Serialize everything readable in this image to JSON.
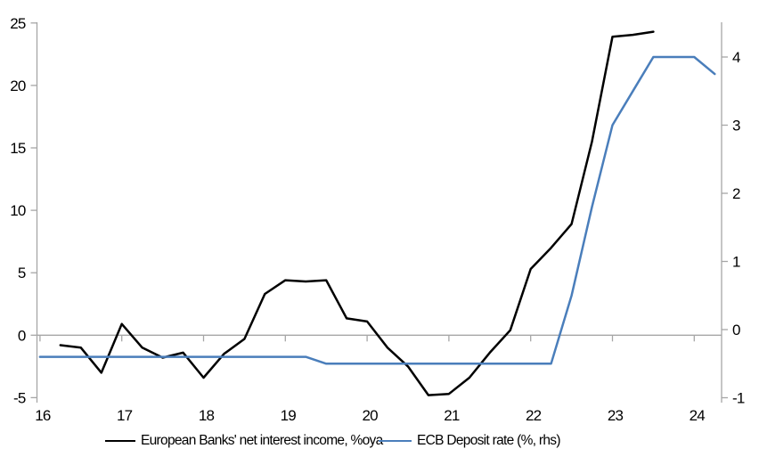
{
  "chart_data": {
    "type": "line",
    "title": "",
    "x_axis": {
      "min": 16,
      "max": 24.33,
      "ticks": [
        16,
        17,
        18,
        19,
        20,
        21,
        22,
        23,
        24
      ],
      "tick_labels": [
        "16",
        "17",
        "18",
        "19",
        "20",
        "21",
        "22",
        "23",
        "24"
      ],
      "label_position": "low"
    },
    "y_left": {
      "min": -5.5,
      "max": 25.1,
      "ticks": [
        25,
        20,
        15,
        10,
        5,
        0,
        -5
      ],
      "tick_labels": [
        "25",
        "20",
        "15",
        "10",
        "5",
        "0",
        "-5"
      ]
    },
    "y_right": {
      "min": -1.05,
      "max": 4.5,
      "ticks": [
        4,
        3,
        2,
        1,
        0,
        -1
      ],
      "tick_labels": [
        "4",
        "3",
        "2",
        "1",
        "0",
        "-1"
      ]
    },
    "grid": "zero-line-only",
    "legend_position": "bottom",
    "series": [
      {
        "name": "European Banks' net interest income, %oya",
        "axis": "left",
        "color": "#000000",
        "points": [
          [
            16.25,
            -0.8
          ],
          [
            16.5,
            -1.0
          ],
          [
            16.75,
            -3.0
          ],
          [
            17.0,
            0.9
          ],
          [
            17.25,
            -1.0
          ],
          [
            17.5,
            -1.8
          ],
          [
            17.75,
            -1.4
          ],
          [
            18.0,
            -3.4
          ],
          [
            18.25,
            -1.5
          ],
          [
            18.5,
            -0.3
          ],
          [
            18.75,
            3.3
          ],
          [
            19.0,
            4.4
          ],
          [
            19.25,
            4.3
          ],
          [
            19.5,
            4.4
          ],
          [
            19.75,
            1.35
          ],
          [
            20.0,
            1.1
          ],
          [
            20.25,
            -1.0
          ],
          [
            20.5,
            -2.5
          ],
          [
            20.75,
            -4.8
          ],
          [
            21.0,
            -4.7
          ],
          [
            21.25,
            -3.4
          ],
          [
            21.5,
            -1.4
          ],
          [
            21.75,
            0.4
          ],
          [
            22.0,
            5.3
          ],
          [
            22.25,
            7.0
          ],
          [
            22.5,
            8.9
          ],
          [
            22.75,
            15.5
          ],
          [
            23.0,
            23.9
          ],
          [
            23.25,
            24.05
          ],
          [
            23.5,
            24.3
          ]
        ]
      },
      {
        "name": "ECB Deposit rate (%, rhs)",
        "axis": "right",
        "color": "#4a7ebb",
        "points": [
          [
            16.0,
            -0.4
          ],
          [
            16.25,
            -0.4
          ],
          [
            16.5,
            -0.4
          ],
          [
            16.75,
            -0.4
          ],
          [
            17.0,
            -0.4
          ],
          [
            17.25,
            -0.4
          ],
          [
            17.5,
            -0.4
          ],
          [
            17.75,
            -0.4
          ],
          [
            18.0,
            -0.4
          ],
          [
            18.25,
            -0.4
          ],
          [
            18.5,
            -0.4
          ],
          [
            18.75,
            -0.4
          ],
          [
            19.0,
            -0.4
          ],
          [
            19.25,
            -0.4
          ],
          [
            19.5,
            -0.5
          ],
          [
            19.75,
            -0.5
          ],
          [
            20.0,
            -0.5
          ],
          [
            20.25,
            -0.5
          ],
          [
            20.5,
            -0.5
          ],
          [
            20.75,
            -0.5
          ],
          [
            21.0,
            -0.5
          ],
          [
            21.25,
            -0.5
          ],
          [
            21.5,
            -0.5
          ],
          [
            21.75,
            -0.5
          ],
          [
            22.0,
            -0.5
          ],
          [
            22.25,
            -0.5
          ],
          [
            22.5,
            0.5
          ],
          [
            22.75,
            1.8
          ],
          [
            23.0,
            3.0
          ],
          [
            23.25,
            3.5
          ],
          [
            23.5,
            4.0
          ],
          [
            23.75,
            4.0
          ],
          [
            24.0,
            4.0
          ],
          [
            24.25,
            3.75
          ]
        ]
      }
    ]
  },
  "legend": {
    "items": [
      {
        "label": "European Banks' net interest income, %oya",
        "color": "#000000"
      },
      {
        "label": "ECB Deposit rate (%, rhs)",
        "color": "#4a7ebb"
      }
    ]
  },
  "colors": {
    "axis": "#a6a6a6",
    "zero_line": "#a6a6a6",
    "text": "#000000",
    "background": "#ffffff",
    "series_black": "#000000",
    "series_blue": "#4a7ebb"
  }
}
